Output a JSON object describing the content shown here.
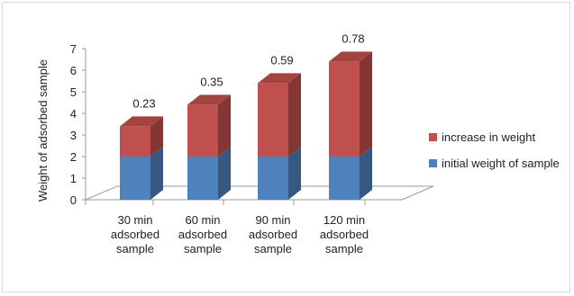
{
  "chart_data": {
    "type": "bar",
    "stacked": true,
    "three_d": true,
    "categories": [
      [
        "30 min",
        "adsorbed",
        "sample"
      ],
      [
        "60 min",
        "adsorbed",
        "sample"
      ],
      [
        "90 min",
        "adsorbed",
        "sample"
      ],
      [
        "120 min",
        "adsorbed",
        "sample"
      ]
    ],
    "series": [
      {
        "name": "initial weight of sample",
        "values": [
          2,
          2,
          2,
          2
        ],
        "color": "#4f81bd"
      },
      {
        "name": "increase in weight",
        "values": [
          1.4,
          2.4,
          3.4,
          4.4
        ],
        "color": "#c0504d"
      }
    ],
    "data_labels": [
      "0.23",
      "0.35",
      "0.59",
      "0.78"
    ],
    "ylabel": "Weight of adsorbed sample",
    "xlabel": "",
    "ylim": [
      0,
      7
    ],
    "yticks": [
      "0",
      "1",
      "2",
      "3",
      "4",
      "5",
      "6",
      "7"
    ],
    "legend_position": "right",
    "grid": false
  }
}
